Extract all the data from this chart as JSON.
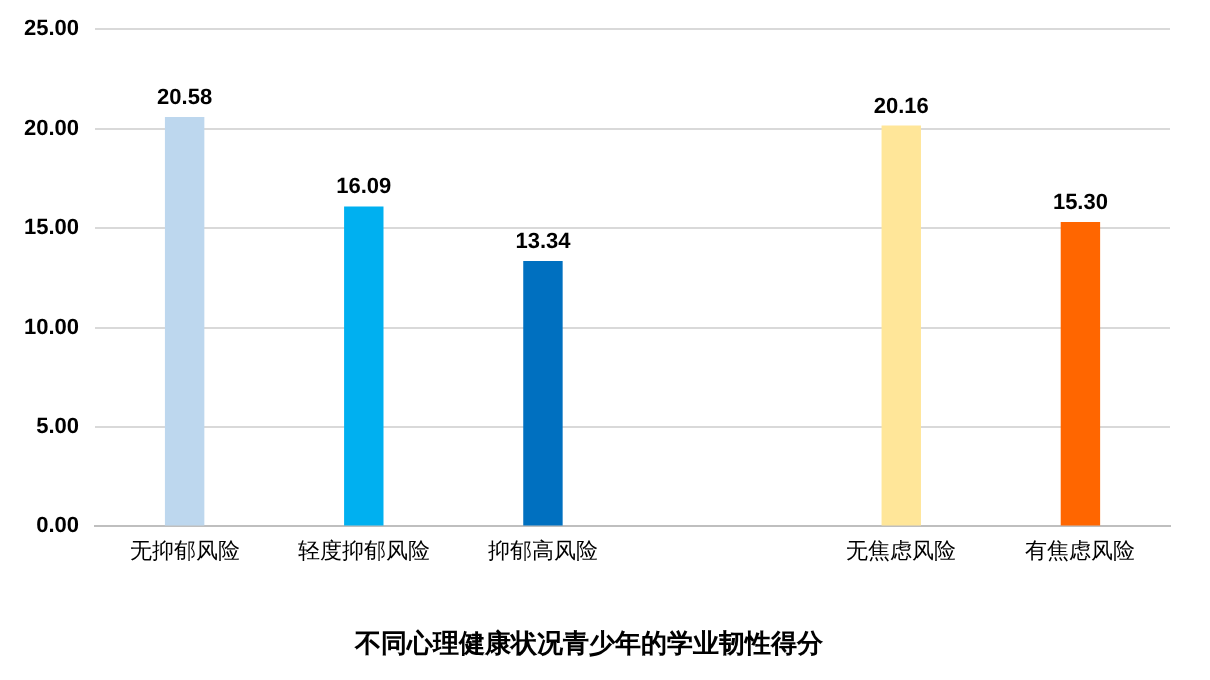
{
  "chart_data": {
    "type": "bar",
    "title": "不同心理健康状况青少年的学业韧性得分",
    "categories": [
      "无抑郁风险",
      "轻度抑郁风险",
      "抑郁高风险",
      null,
      "无焦虑风险",
      "有焦虑风险"
    ],
    "values": [
      20.58,
      16.09,
      13.34,
      null,
      20.16,
      15.3
    ],
    "colors": [
      "#bdd7ee",
      "#00b0f0",
      "#0070c0",
      "#ffffff",
      "#ffe699",
      "#ff6600"
    ],
    "value_labels": [
      "20.58",
      "16.09",
      "13.34",
      null,
      "20.16",
      "15.30"
    ],
    "ylim": [
      0,
      25
    ],
    "yticks": [
      {
        "value": 0,
        "label": "0.00"
      },
      {
        "value": 5,
        "label": "5.00"
      },
      {
        "value": 10,
        "label": "10.00"
      },
      {
        "value": 15,
        "label": "15.00"
      },
      {
        "value": 20,
        "label": "20.00"
      },
      {
        "value": 25,
        "label": "25.00"
      }
    ],
    "grid": "y",
    "legend": false
  }
}
